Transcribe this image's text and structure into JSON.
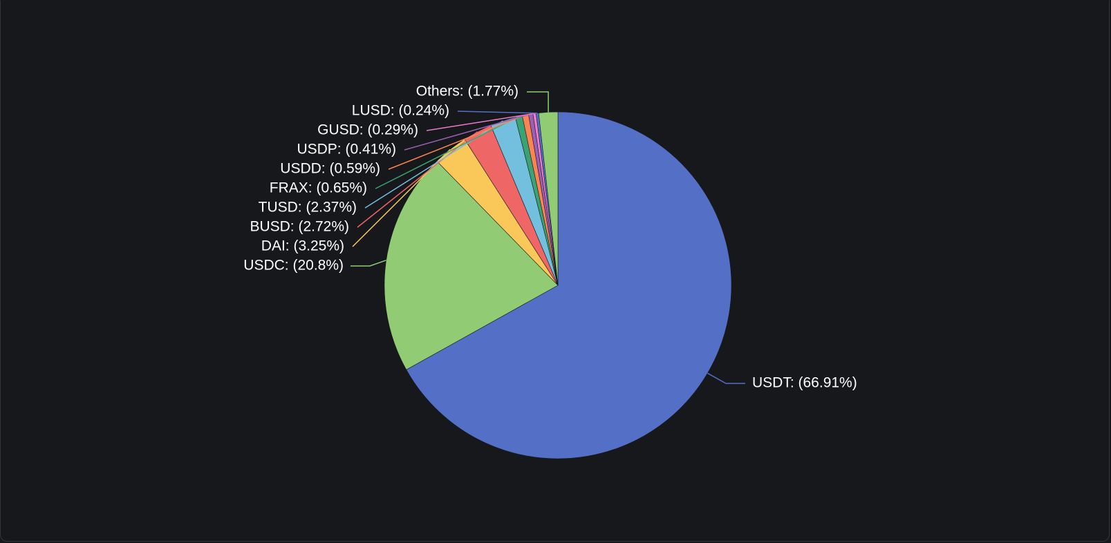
{
  "chart_data": {
    "type": "pie",
    "title": "",
    "start_angle_deg": 0,
    "direction": "clockwise",
    "slices": [
      {
        "name": "USDT",
        "label": "USDT: (66.91%)",
        "value": 66.91,
        "color": "#5470c6"
      },
      {
        "name": "USDC",
        "label": "USDC: (20.8%)",
        "value": 20.8,
        "color": "#91cc75"
      },
      {
        "name": "DAI",
        "label": "DAI: (3.25%)",
        "value": 3.25,
        "color": "#fac858"
      },
      {
        "name": "BUSD",
        "label": "BUSD: (2.72%)",
        "value": 2.72,
        "color": "#ee6666"
      },
      {
        "name": "TUSD",
        "label": "TUSD: (2.37%)",
        "value": 2.37,
        "color": "#73c0de"
      },
      {
        "name": "FRAX",
        "label": "FRAX: (0.65%)",
        "value": 0.65,
        "color": "#3ba272"
      },
      {
        "name": "USDD",
        "label": "USDD: (0.59%)",
        "value": 0.59,
        "color": "#fc8452"
      },
      {
        "name": "USDP",
        "label": "USDP: (0.41%)",
        "value": 0.41,
        "color": "#9a60b4"
      },
      {
        "name": "GUSD",
        "label": "GUSD: (0.29%)",
        "value": 0.29,
        "color": "#ea7ccc"
      },
      {
        "name": "LUSD",
        "label": "LUSD: (0.24%)",
        "value": 0.24,
        "color": "#5470c6"
      },
      {
        "name": "Others",
        "label": "Others: (1.77%)",
        "value": 1.77,
        "color": "#91cc75"
      }
    ]
  }
}
